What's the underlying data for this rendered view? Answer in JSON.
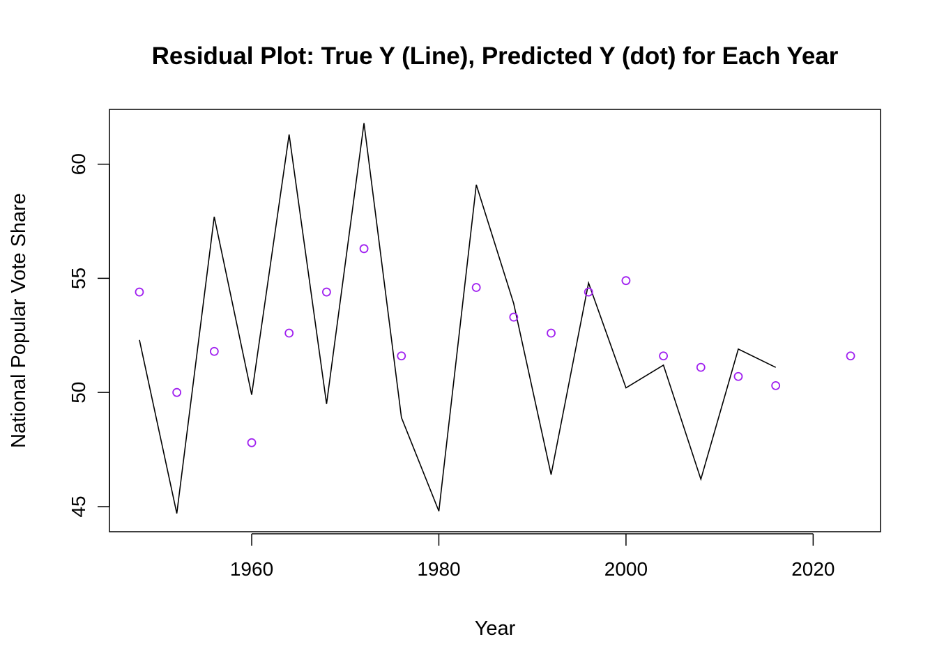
{
  "chart_data": {
    "type": "line",
    "title": "Residual Plot: True Y (Line), Predicted Y (dot) for Each Year",
    "xlabel": "Year",
    "ylabel": "National Popular Vote Share",
    "xlim": [
      1944.8,
      2027.2
    ],
    "ylim": [
      43.9,
      62.4
    ],
    "xticks": [
      1960,
      1980,
      2000,
      2020
    ],
    "yticks": [
      45,
      50,
      55,
      60
    ],
    "grid": false,
    "legend": "none",
    "series": [
      {
        "kind": "line",
        "color": "#000000",
        "x": [
          1948,
          1952,
          1956,
          1960,
          1964,
          1968,
          1972,
          1976,
          1980,
          1984,
          1988,
          1992,
          1996,
          2000,
          2004,
          2008,
          2012,
          2016
        ],
        "y": [
          52.3,
          44.7,
          57.7,
          49.9,
          61.3,
          49.5,
          61.8,
          48.9,
          44.8,
          59.1,
          53.9,
          46.4,
          54.8,
          50.2,
          51.2,
          46.2,
          51.9,
          51.1
        ]
      },
      {
        "kind": "points",
        "color": "#a020f0",
        "x": [
          1948,
          1952,
          1956,
          1960,
          1964,
          1968,
          1972,
          1976,
          1984,
          1988,
          1992,
          1996,
          2000,
          2004,
          2008,
          2012,
          2016,
          2024
        ],
        "y": [
          54.4,
          50.0,
          51.8,
          47.8,
          52.6,
          54.4,
          56.3,
          51.6,
          54.6,
          53.3,
          52.6,
          54.4,
          54.9,
          51.6,
          51.1,
          50.7,
          50.3,
          51.6
        ]
      }
    ]
  }
}
